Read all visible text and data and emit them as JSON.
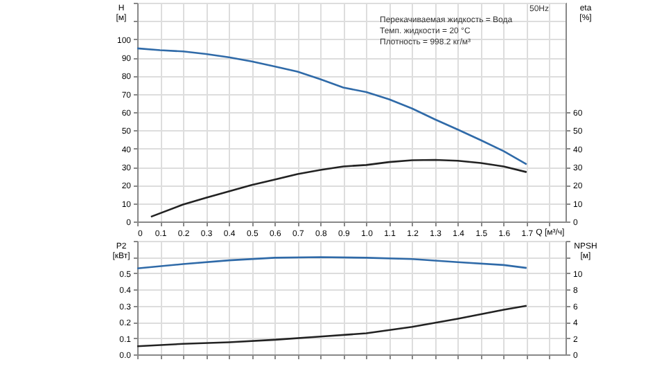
{
  "chart_data": [
    {
      "type": "line",
      "ylabel": "H [м]",
      "y2label": "eta [%]",
      "xlabel": "Q [м³/ч]",
      "grid": true,
      "legend": false,
      "xlim": [
        0,
        1.87
      ],
      "xticks": [
        0,
        0.1,
        0.2,
        0.3,
        0.4,
        0.5,
        0.6,
        0.7,
        0.8,
        0.9,
        {
          "value": 1,
          "label": "1.0"
        },
        1.1,
        1.2,
        1.3,
        1.4,
        1.5,
        1.6,
        1.7,
        {
          "value": 1.8,
          "label": null
        }
      ],
      "ylim": [
        0,
        120
      ],
      "yticks": [
        0,
        10,
        20,
        30,
        40,
        50,
        60,
        70,
        80,
        90,
        100,
        {
          "value": 110,
          "label": null
        },
        {
          "value": 120,
          "label": null
        }
      ],
      "y2lim": [
        0,
        120
      ],
      "y2ticks": [
        0,
        10,
        20,
        30,
        40,
        50,
        60
      ],
      "annotations": [
        "50Hz",
        "Перекачиваемая жидкость = Вода",
        "Темп. жидкости = 20 °C",
        "Плотность = 998.2 кг/м³"
      ],
      "series": [
        {
          "color": "#2f6aa8",
          "axis": "y",
          "x": [
            0,
            0.1,
            0.2,
            0.3,
            0.4,
            0.5,
            0.6,
            0.7,
            0.8,
            0.9,
            1.0,
            1.1,
            1.2,
            1.3,
            1.4,
            1.5,
            1.6,
            1.7
          ],
          "values": [
            95,
            94,
            93.3,
            91.9,
            90.1,
            87.8,
            85.1,
            82.2,
            78,
            73.5,
            71,
            67,
            62,
            56,
            50.4,
            44.6,
            38.6,
            31.4
          ]
        },
        {
          "color": "#222222",
          "axis": "y2",
          "x": [
            0.06,
            0.2,
            0.3,
            0.4,
            0.5,
            0.6,
            0.7,
            0.8,
            0.9,
            1.0,
            1.1,
            1.2,
            1.3,
            1.4,
            1.5,
            1.6,
            1.7
          ],
          "values": [
            2.6,
            9.3,
            13,
            16.5,
            20,
            23,
            26,
            28.3,
            30.2,
            31,
            32.6,
            33.6,
            33.8,
            33.3,
            32.1,
            30.2,
            27.1
          ]
        }
      ]
    },
    {
      "type": "line",
      "ylabel": "P2 [кВт]",
      "y2label": "NPSH [м]",
      "grid": true,
      "legend": false,
      "tick_labels": "y",
      "xlim": [
        0,
        1.87
      ],
      "xticks": [
        0,
        0.1,
        0.2,
        0.3,
        0.4,
        0.5,
        0.6,
        0.7,
        0.8,
        0.9,
        1,
        1.1,
        1.2,
        1.3,
        1.4,
        1.5,
        1.6,
        1.7,
        1.8
      ],
      "ylim": [
        0,
        0.7
      ],
      "yticks": [
        {
          "value": 0,
          "label": "0.0"
        },
        0.1,
        0.2,
        0.3,
        0.4,
        0.5,
        {
          "value": 0.6,
          "label": null
        },
        {
          "value": 0.7,
          "label": null
        }
      ],
      "y2lim": [
        0,
        14
      ],
      "y2ticks": [
        0,
        2,
        4,
        6,
        8,
        10,
        {
          "value": 12,
          "label": null
        },
        {
          "value": 14,
          "label": null
        }
      ],
      "series": [
        {
          "color": "#2f6aa8",
          "axis": "y",
          "x": [
            0,
            0.2,
            0.4,
            0.6,
            0.8,
            1.0,
            1.2,
            1.4,
            1.6,
            1.7
          ],
          "values": [
            0.53,
            0.557,
            0.58,
            0.596,
            0.6,
            0.596,
            0.588,
            0.569,
            0.551,
            0.533
          ]
        },
        {
          "color": "#222222",
          "axis": "y2",
          "x": [
            0,
            0.2,
            0.4,
            0.6,
            0.8,
            1.0,
            1.2,
            1.4,
            1.6,
            1.7
          ],
          "values": [
            1.0,
            1.3,
            1.5,
            1.8,
            2.2,
            2.6,
            3.4,
            4.4,
            5.5,
            6.0
          ]
        }
      ]
    }
  ]
}
